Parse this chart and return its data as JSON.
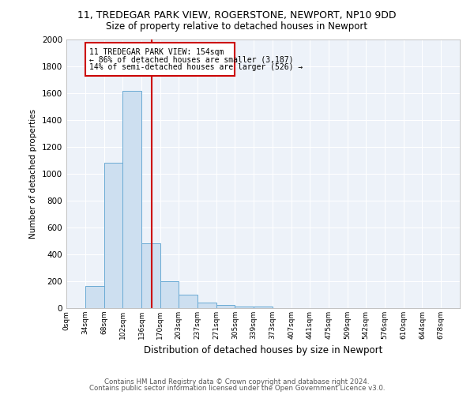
{
  "title_line1": "11, TREDEGAR PARK VIEW, ROGERSTONE, NEWPORT, NP10 9DD",
  "title_line2": "Size of property relative to detached houses in Newport",
  "xlabel": "Distribution of detached houses by size in Newport",
  "ylabel": "Number of detached properties",
  "footer_line1": "Contains HM Land Registry data © Crown copyright and database right 2024.",
  "footer_line2": "Contains public sector information licensed under the Open Government Licence v3.0.",
  "annotation_line1": "11 TREDEGAR PARK VIEW: 154sqm",
  "annotation_line2": "← 86% of detached houses are smaller (3,187)",
  "annotation_line3": "14% of semi-detached houses are larger (526) →",
  "bin_edges": [
    0,
    34,
    68,
    102,
    136,
    170,
    203,
    237,
    271,
    305,
    339,
    373,
    407,
    441,
    475,
    509,
    542,
    576,
    610,
    644,
    678
  ],
  "bin_counts": [
    0,
    165,
    1080,
    1620,
    480,
    200,
    100,
    40,
    25,
    10,
    12,
    0,
    0,
    0,
    0,
    0,
    0,
    0,
    0,
    0
  ],
  "property_size": 154,
  "bar_facecolor": "#cddff0",
  "bar_edgecolor": "#6aaad4",
  "vline_color": "#cc0000",
  "background_color": "#edf2f9",
  "ylim": [
    0,
    2000
  ],
  "yticks": [
    0,
    200,
    400,
    600,
    800,
    1000,
    1200,
    1400,
    1600,
    1800,
    2000
  ],
  "annotation_box_edgecolor": "#cc0000",
  "grid_color": "#ffffff"
}
